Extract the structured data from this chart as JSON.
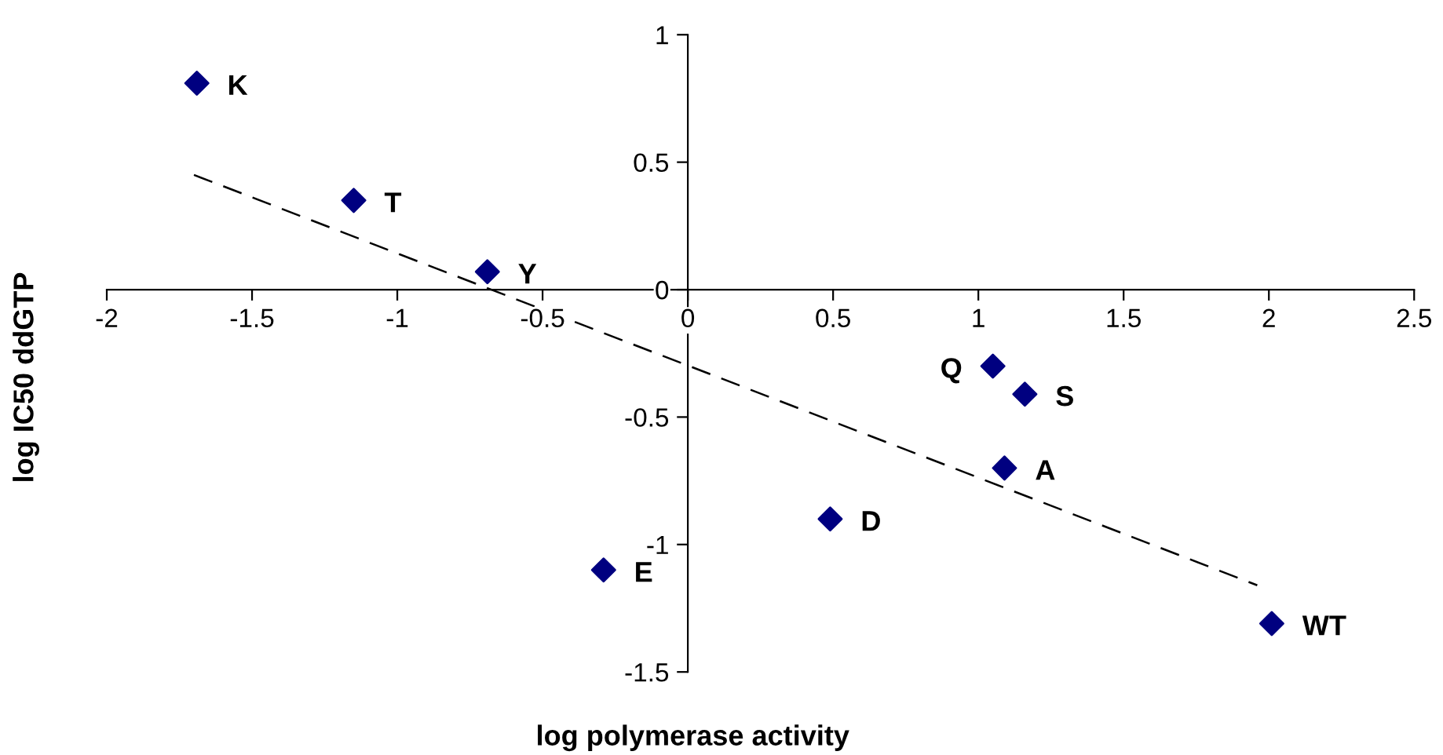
{
  "chart_data": {
    "type": "scatter",
    "xlabel": "log polymerase activity",
    "ylabel": "log IC50 ddGTP",
    "series": [
      {
        "color": "#000080",
        "marker": "diamond",
        "x": [
          -1.69,
          -1.15,
          -0.69,
          -0.29,
          0.49,
          1.05,
          1.16,
          1.09,
          2.01
        ],
        "values": [
          0.81,
          0.35,
          0.07,
          -1.1,
          -0.9,
          -0.3,
          -0.41,
          -0.7,
          -1.31
        ]
      },
      {
        "type": "line",
        "color": "#000000",
        "line_style": "dashed",
        "marker": "none",
        "x": [
          -1.7,
          1.96
        ],
        "values": [
          0.45,
          -1.16
        ]
      }
    ],
    "annotations": [
      {
        "text": "K",
        "x": -1.69,
        "y": 0.81
      },
      {
        "text": "T",
        "x": -1.15,
        "y": 0.35
      },
      {
        "text": "Y",
        "x": -0.69,
        "y": 0.07
      },
      {
        "text": "E",
        "x": -0.29,
        "y": -1.1
      },
      {
        "text": "D",
        "x": 0.49,
        "y": -0.9
      },
      {
        "text": "Q",
        "x": 1.05,
        "y": -0.3
      },
      {
        "text": "S",
        "x": 1.16,
        "y": -0.41
      },
      {
        "text": "A",
        "x": 1.09,
        "y": -0.7
      },
      {
        "text": "WT",
        "x": 2.01,
        "y": -1.31
      }
    ],
    "xlim": [
      -2,
      2.5
    ],
    "xticks": [
      -2,
      -1.5,
      -1,
      -0.5,
      0,
      0.5,
      1,
      1.5,
      2,
      2.5
    ],
    "ylim": [
      -1.5,
      1
    ],
    "yticks": [
      -1.5,
      -1,
      -0.5,
      0,
      0.5,
      1
    ],
    "grid": false,
    "legend": false
  }
}
